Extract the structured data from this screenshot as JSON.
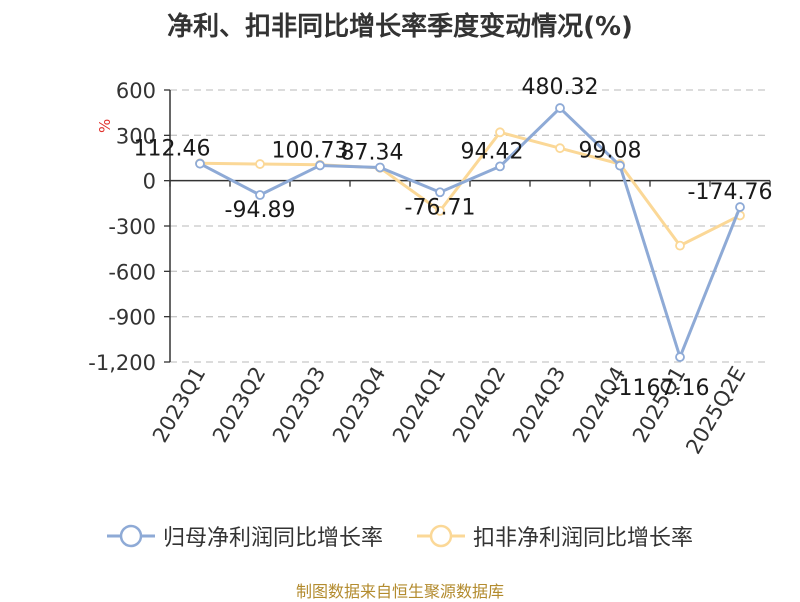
{
  "chart_data": {
    "type": "line",
    "title": "净利、扣非同比增长率季度变动情况(%)",
    "ylabel": "%",
    "ylim": [
      -1200,
      600
    ],
    "yticks": [
      600,
      300,
      0,
      -300,
      -600,
      -900,
      -1200
    ],
    "ytick_labels": [
      "600",
      "300",
      "0",
      "-300",
      "-600",
      "-900",
      "-1,200"
    ],
    "categories": [
      "2023Q1",
      "2023Q2",
      "2023Q3",
      "2023Q4",
      "2024Q1",
      "2024Q2",
      "2024Q3",
      "2024Q4",
      "2025Q1",
      "2025Q2E"
    ],
    "grid": true,
    "legend_position": "bottom",
    "series": [
      {
        "name": "归母净利润同比增长率",
        "color": "#8eaad6",
        "values": [
          112.46,
          -94.89,
          100.73,
          87.34,
          -76.71,
          94.42,
          480.32,
          99.08,
          -1167.16,
          -174.76
        ],
        "labels": [
          "112.46",
          "-94.89",
          "100.73",
          "87.34",
          "-76.71",
          "94.42",
          "480.32",
          "99.08",
          "-1167.16",
          "-174.76"
        ]
      },
      {
        "name": "扣非净利润同比增长率",
        "color": "#fbd897",
        "values": [
          115,
          110,
          105,
          85,
          -200,
          320,
          215,
          110,
          -430,
          -230
        ]
      }
    ]
  },
  "source": "制图数据来自恒生聚源数据库"
}
